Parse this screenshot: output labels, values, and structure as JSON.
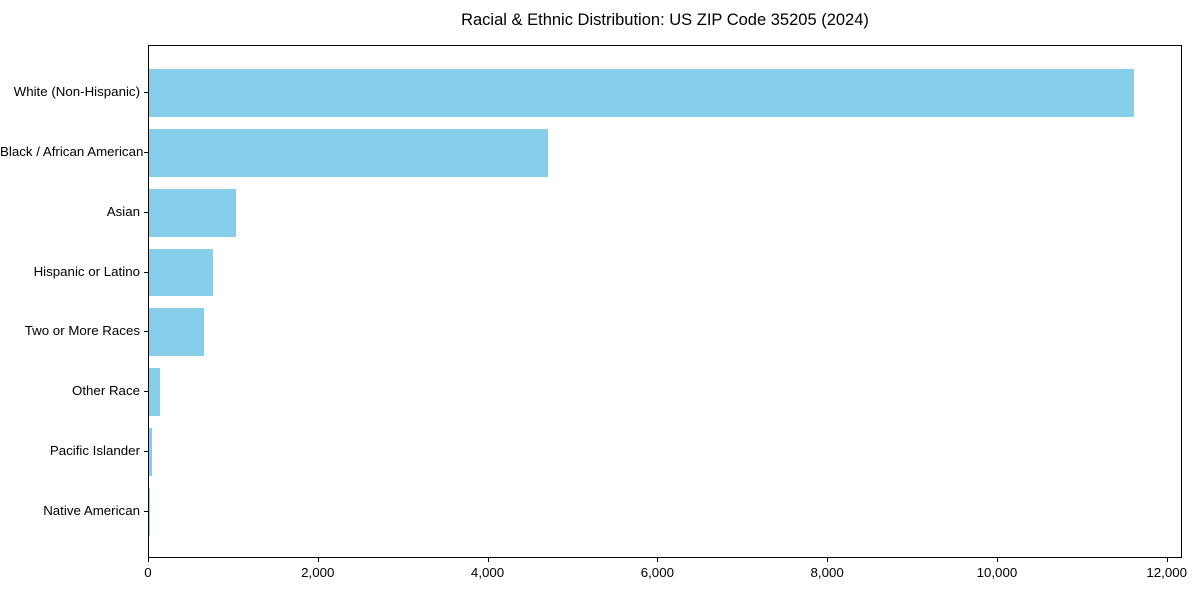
{
  "chart_data": {
    "type": "bar",
    "orientation": "horizontal",
    "title": "Racial & Ethnic Distribution: US ZIP Code 35205 (2024)",
    "categories": [
      "White (Non-Hispanic)",
      "Black / African American",
      "Asian",
      "Hispanic or Latino",
      "Two or More Races",
      "Other Race",
      "Pacific Islander",
      "Native American"
    ],
    "values": [
      11600,
      4700,
      1020,
      750,
      650,
      130,
      35,
      10
    ],
    "xlabel": "",
    "ylabel": "",
    "xlim": [
      0,
      12000
    ],
    "xticks": [
      0,
      2000,
      4000,
      6000,
      8000,
      10000,
      12000
    ],
    "xtick_labels": [
      "0",
      "2,000",
      "4,000",
      "6,000",
      "8,000",
      "10,000",
      "12,000"
    ],
    "grid": false,
    "legend": null,
    "bar_color": "#87CEEB",
    "spine_color": "#000000",
    "background_color": "#FFFFFF",
    "text_color": "#000000"
  }
}
